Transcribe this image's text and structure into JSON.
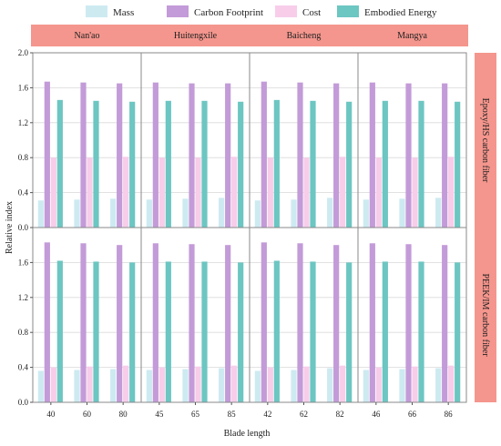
{
  "chart_data": {
    "type": "bar",
    "ylabel": "Relative index",
    "xlabel": "Blade length",
    "ylim": [
      0,
      2.0
    ],
    "yticks": [
      "0.0",
      "0.4",
      "0.8",
      "1.2",
      "1.6",
      "2.0"
    ],
    "grid": true,
    "legend_position": "top",
    "series": [
      {
        "name": "Mass",
        "color": "#cdeaf1"
      },
      {
        "name": "Carbon Footprint",
        "color": "#c39bd8"
      },
      {
        "name": "Cost",
        "color": "#f7cdea"
      },
      {
        "name": "Embodied Energy",
        "color": "#6cc6c2"
      }
    ],
    "strip_color": "#f4968d",
    "columns": [
      {
        "site": "Nan'ao",
        "categories": [
          "40",
          "60",
          "80"
        ]
      },
      {
        "site": "Huitengxile",
        "categories": [
          "45",
          "65",
          "85"
        ]
      },
      {
        "site": "Baicheng",
        "categories": [
          "42",
          "62",
          "82"
        ]
      },
      {
        "site": "Mangya",
        "categories": [
          "46",
          "66",
          "86"
        ]
      }
    ],
    "rows": [
      {
        "material": "Epoxy/HS carbon fiber",
        "panels": [
          [
            [
              0.31,
              1.67,
              0.8,
              1.46
            ],
            [
              0.32,
              1.66,
              0.8,
              1.45
            ],
            [
              0.33,
              1.65,
              0.81,
              1.44
            ]
          ],
          [
            [
              0.32,
              1.66,
              0.8,
              1.45
            ],
            [
              0.33,
              1.65,
              0.8,
              1.45
            ],
            [
              0.34,
              1.65,
              0.81,
              1.44
            ]
          ],
          [
            [
              0.31,
              1.67,
              0.8,
              1.46
            ],
            [
              0.32,
              1.66,
              0.8,
              1.45
            ],
            [
              0.34,
              1.65,
              0.81,
              1.44
            ]
          ],
          [
            [
              0.32,
              1.66,
              0.8,
              1.45
            ],
            [
              0.33,
              1.65,
              0.8,
              1.45
            ],
            [
              0.34,
              1.65,
              0.81,
              1.44
            ]
          ]
        ]
      },
      {
        "material": "PEEK/IM carbon fiber",
        "panels": [
          [
            [
              0.36,
              1.83,
              0.4,
              1.62
            ],
            [
              0.37,
              1.82,
              0.41,
              1.61
            ],
            [
              0.38,
              1.8,
              0.42,
              1.6
            ]
          ],
          [
            [
              0.37,
              1.82,
              0.4,
              1.61
            ],
            [
              0.38,
              1.81,
              0.41,
              1.61
            ],
            [
              0.39,
              1.8,
              0.42,
              1.6
            ]
          ],
          [
            [
              0.36,
              1.83,
              0.4,
              1.62
            ],
            [
              0.37,
              1.82,
              0.41,
              1.61
            ],
            [
              0.39,
              1.8,
              0.42,
              1.6
            ]
          ],
          [
            [
              0.37,
              1.82,
              0.4,
              1.61
            ],
            [
              0.38,
              1.81,
              0.41,
              1.61
            ],
            [
              0.39,
              1.8,
              0.42,
              1.6
            ]
          ]
        ]
      }
    ]
  }
}
